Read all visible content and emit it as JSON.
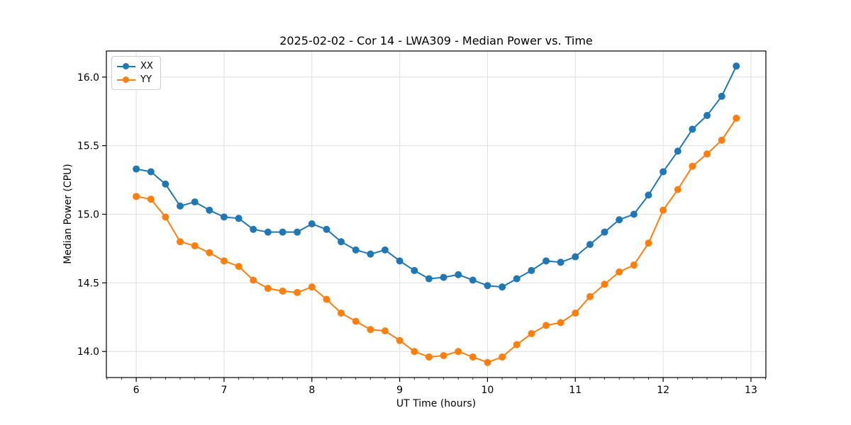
{
  "chart_data": {
    "type": "line",
    "title": "2025-02-02 - Cor 14 - LWA309 - Median Power vs. Time",
    "xlabel": "UT Time (hours)",
    "ylabel": "Median Power (CPU)",
    "xlim": [
      5.66,
      13.17
    ],
    "ylim": [
      13.81,
      16.19
    ],
    "x_major_ticks": [
      6,
      7,
      8,
      9,
      10,
      11,
      12,
      13
    ],
    "x_minor_tick_step": 0.1667,
    "y_major_ticks": [
      14.0,
      14.5,
      15.0,
      15.5,
      16.0
    ],
    "grid": "major-both",
    "grid_color": "#e0e0e0",
    "axis_color": "#000000",
    "legend_position": "upper-left",
    "x": [
      6.0,
      6.167,
      6.333,
      6.5,
      6.667,
      6.833,
      7.0,
      7.167,
      7.333,
      7.5,
      7.667,
      7.833,
      8.0,
      8.167,
      8.333,
      8.5,
      8.667,
      8.833,
      9.0,
      9.167,
      9.333,
      9.5,
      9.667,
      9.833,
      10.0,
      10.167,
      10.333,
      10.5,
      10.667,
      10.833,
      11.0,
      11.167,
      11.333,
      11.5,
      11.667,
      11.833,
      12.0,
      12.167,
      12.333,
      12.5,
      12.667,
      12.833
    ],
    "series": [
      {
        "name": "XX",
        "color": "#1f77b4",
        "values": [
          15.33,
          15.31,
          15.22,
          15.06,
          15.09,
          15.03,
          14.98,
          14.97,
          14.89,
          14.87,
          14.87,
          14.87,
          14.93,
          14.89,
          14.8,
          14.74,
          14.71,
          14.74,
          14.66,
          14.59,
          14.53,
          14.54,
          14.56,
          14.52,
          14.48,
          14.47,
          14.53,
          14.59,
          14.66,
          14.65,
          14.69,
          14.78,
          14.87,
          14.96,
          15.0,
          15.14,
          15.31,
          15.46,
          15.62,
          15.72,
          15.86,
          16.08
        ]
      },
      {
        "name": "YY",
        "color": "#ff7f0e",
        "values": [
          15.13,
          15.11,
          14.98,
          14.8,
          14.77,
          14.72,
          14.66,
          14.62,
          14.52,
          14.46,
          14.44,
          14.43,
          14.47,
          14.38,
          14.28,
          14.22,
          14.16,
          14.15,
          14.08,
          14.0,
          13.96,
          13.97,
          14.0,
          13.96,
          13.92,
          13.96,
          14.05,
          14.13,
          14.19,
          14.21,
          14.28,
          14.4,
          14.49,
          14.58,
          14.63,
          14.79,
          15.03,
          15.18,
          15.35,
          15.44,
          15.54,
          15.7
        ]
      }
    ]
  }
}
